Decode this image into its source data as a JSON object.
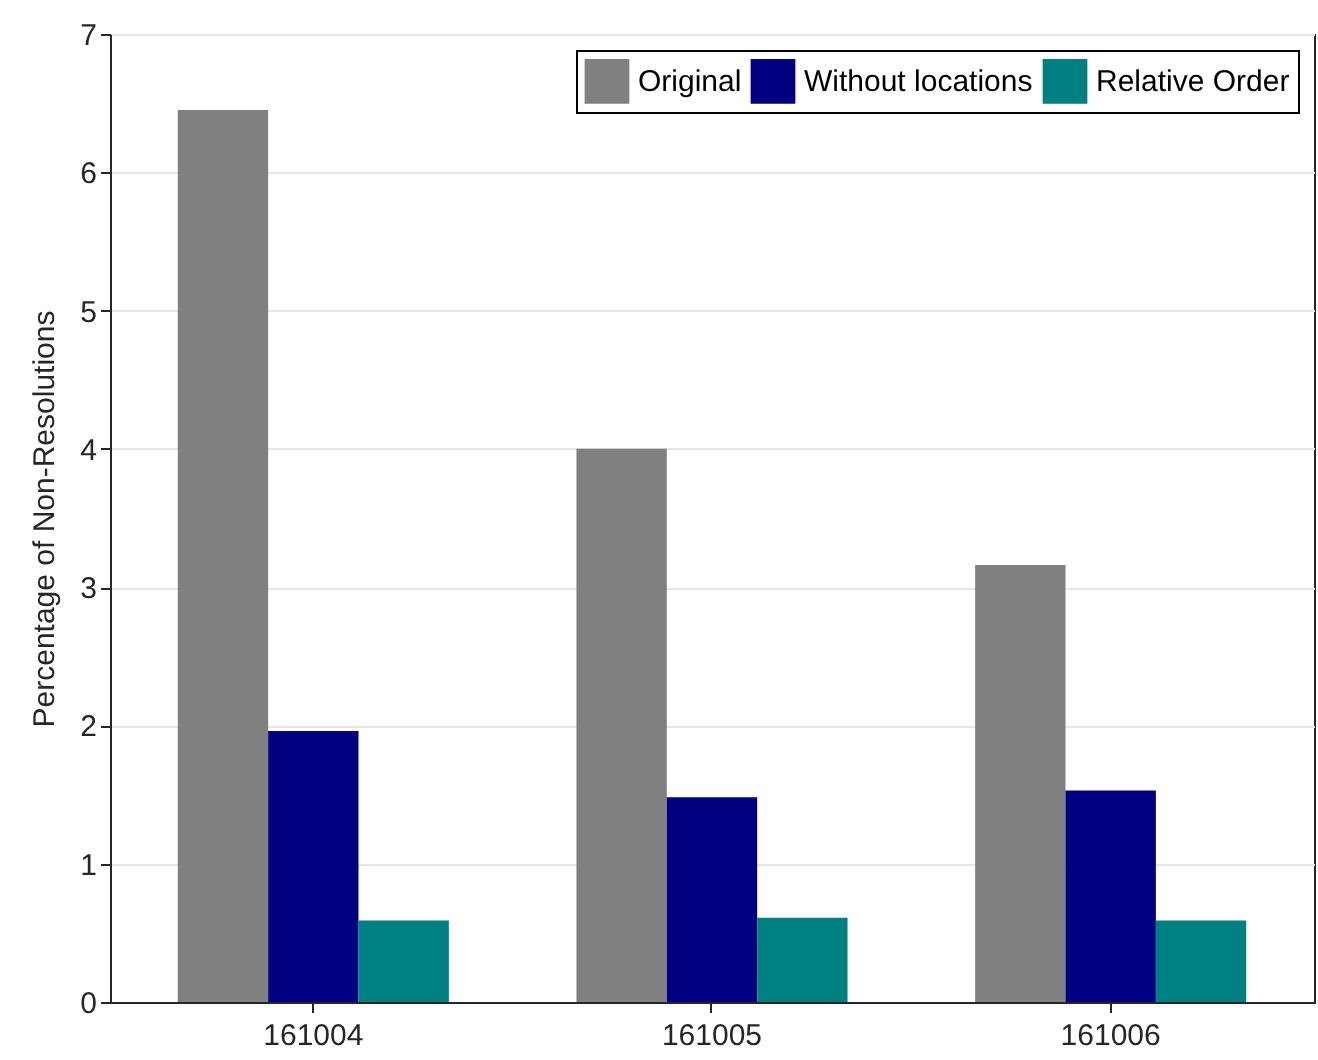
{
  "chart_data": {
    "type": "bar",
    "ylabel": "Percentage of Non-Resolutions",
    "categories": [
      "161004",
      "161005",
      "161006"
    ],
    "series": [
      {
        "name": "Original",
        "color": "#808080",
        "values": [
          6.45,
          4.0,
          3.16
        ]
      },
      {
        "name": "Without locations",
        "color": "#000080",
        "values": [
          1.96,
          1.48,
          1.53
        ]
      },
      {
        "name": "Relative Order",
        "color": "#008080",
        "values": [
          0.59,
          0.61,
          0.59
        ]
      }
    ],
    "ylim": [
      0,
      7
    ],
    "yticks": [
      0,
      1,
      2,
      3,
      4,
      5,
      6,
      7
    ],
    "grid": "y",
    "legend": "top right"
  }
}
